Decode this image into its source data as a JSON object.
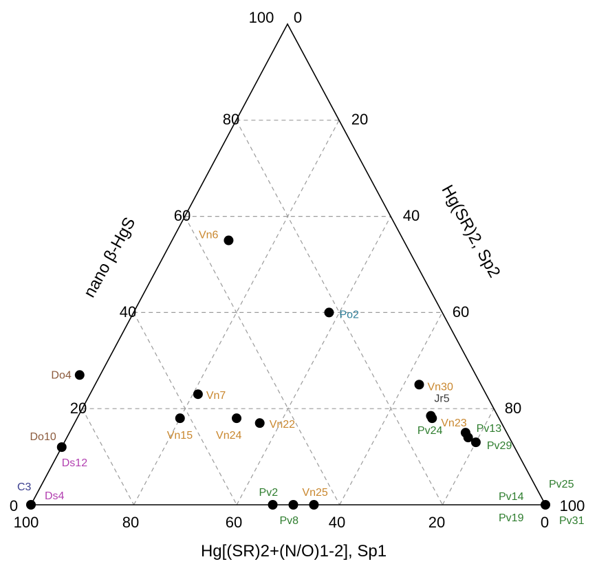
{
  "chart_data": {
    "type": "scatter",
    "subtype": "ternary",
    "axes": {
      "bottom": {
        "label": "Hg[(SR)2+(N/O)1-2], Sp1",
        "ticks": [
          "100",
          "80",
          "60",
          "40",
          "20",
          "0"
        ]
      },
      "left": {
        "label": "nano β-HgS",
        "ticks": [
          "0",
          "20",
          "40",
          "60",
          "80",
          "100"
        ]
      },
      "right": {
        "label": "Hg(SR)2, Sp2",
        "ticks": [
          "0",
          "20",
          "40",
          "60",
          "80",
          "100"
        ]
      }
    },
    "grid": true,
    "grid_step": 20,
    "colors": {
      "Vn": "#c9872e",
      "Do": "#8b5a3c",
      "Ds": "#b23fb0",
      "C": "#3b3f8f",
      "Po": "#2f7f9a",
      "Jr": "#3a3a3a",
      "Pv": "#2e7d2e"
    },
    "points": [
      {
        "label": "Vn6",
        "group": "Vn",
        "Sp1": 34,
        "nano": 55,
        "Sp2": 11
      },
      {
        "label": "Po2",
        "group": "Po",
        "Sp1": 22,
        "nano": 40,
        "Sp2": 38
      },
      {
        "label": "Vn30",
        "group": "Vn",
        "Sp1": 12,
        "nano": 25,
        "Sp2": 63
      },
      {
        "label": "Jr5",
        "group": "Jr",
        "Sp1": 13,
        "nano": 18.5,
        "Sp2": 68.5
      },
      {
        "label": "Vn23",
        "group": "Vn",
        "Sp1": 13,
        "nano": 18,
        "Sp2": 69
      },
      {
        "label": "Do4",
        "group": "Do",
        "Sp1": 77,
        "nano": 27,
        "Sp2": -4
      },
      {
        "label": "Vn7",
        "group": "Vn",
        "Sp1": 56,
        "nano": 23,
        "Sp2": 21
      },
      {
        "label": "Vn15",
        "group": "Vn",
        "Sp1": 62,
        "nano": 18,
        "Sp2": 20
      },
      {
        "label": "Vn24",
        "group": "Vn",
        "Sp1": 51,
        "nano": 18,
        "Sp2": 31
      },
      {
        "label": "Vn22",
        "group": "Vn",
        "Sp1": 47,
        "nano": 17,
        "Sp2": 36
      },
      {
        "label": "Do10",
        "group": "Do",
        "Sp1": 88,
        "nano": 12,
        "Sp2": 0
      },
      {
        "label": "Ds12",
        "group": "Ds",
        "Sp1": 88,
        "nano": 12,
        "Sp2": 0
      },
      {
        "label": "C3",
        "group": "C",
        "Sp1": 100,
        "nano": 0,
        "Sp2": 0
      },
      {
        "label": "Ds4",
        "group": "Ds",
        "Sp1": 100,
        "nano": 0,
        "Sp2": 0
      },
      {
        "label": "Pv24",
        "group": "Pv",
        "Sp1": 8,
        "nano": 15,
        "Sp2": 77
      },
      {
        "label": "Pv13",
        "group": "Pv",
        "Sp1": 8,
        "nano": 14,
        "Sp2": 78
      },
      {
        "label": "Pv29",
        "group": "Pv",
        "Sp1": 7,
        "nano": 13,
        "Sp2": 80
      },
      {
        "label": "Pv2",
        "group": "Pv",
        "Sp1": 53,
        "nano": 0,
        "Sp2": 47
      },
      {
        "label": "Pv8",
        "group": "Pv",
        "Sp1": 49,
        "nano": 0,
        "Sp2": 51
      },
      {
        "label": "Vn25",
        "group": "Vn",
        "Sp1": 45,
        "nano": 0,
        "Sp2": 55
      },
      {
        "label": "Pv25",
        "group": "Pv",
        "Sp1": 0,
        "nano": 0,
        "Sp2": 100
      },
      {
        "label": "Pv14",
        "group": "Pv",
        "Sp1": 0,
        "nano": 0,
        "Sp2": 100
      },
      {
        "label": "Pv19",
        "group": "Pv",
        "Sp1": 0,
        "nano": 0,
        "Sp2": 100
      },
      {
        "label": "Pv31",
        "group": "Pv",
        "Sp1": 0,
        "nano": 0,
        "Sp2": 100
      }
    ]
  }
}
